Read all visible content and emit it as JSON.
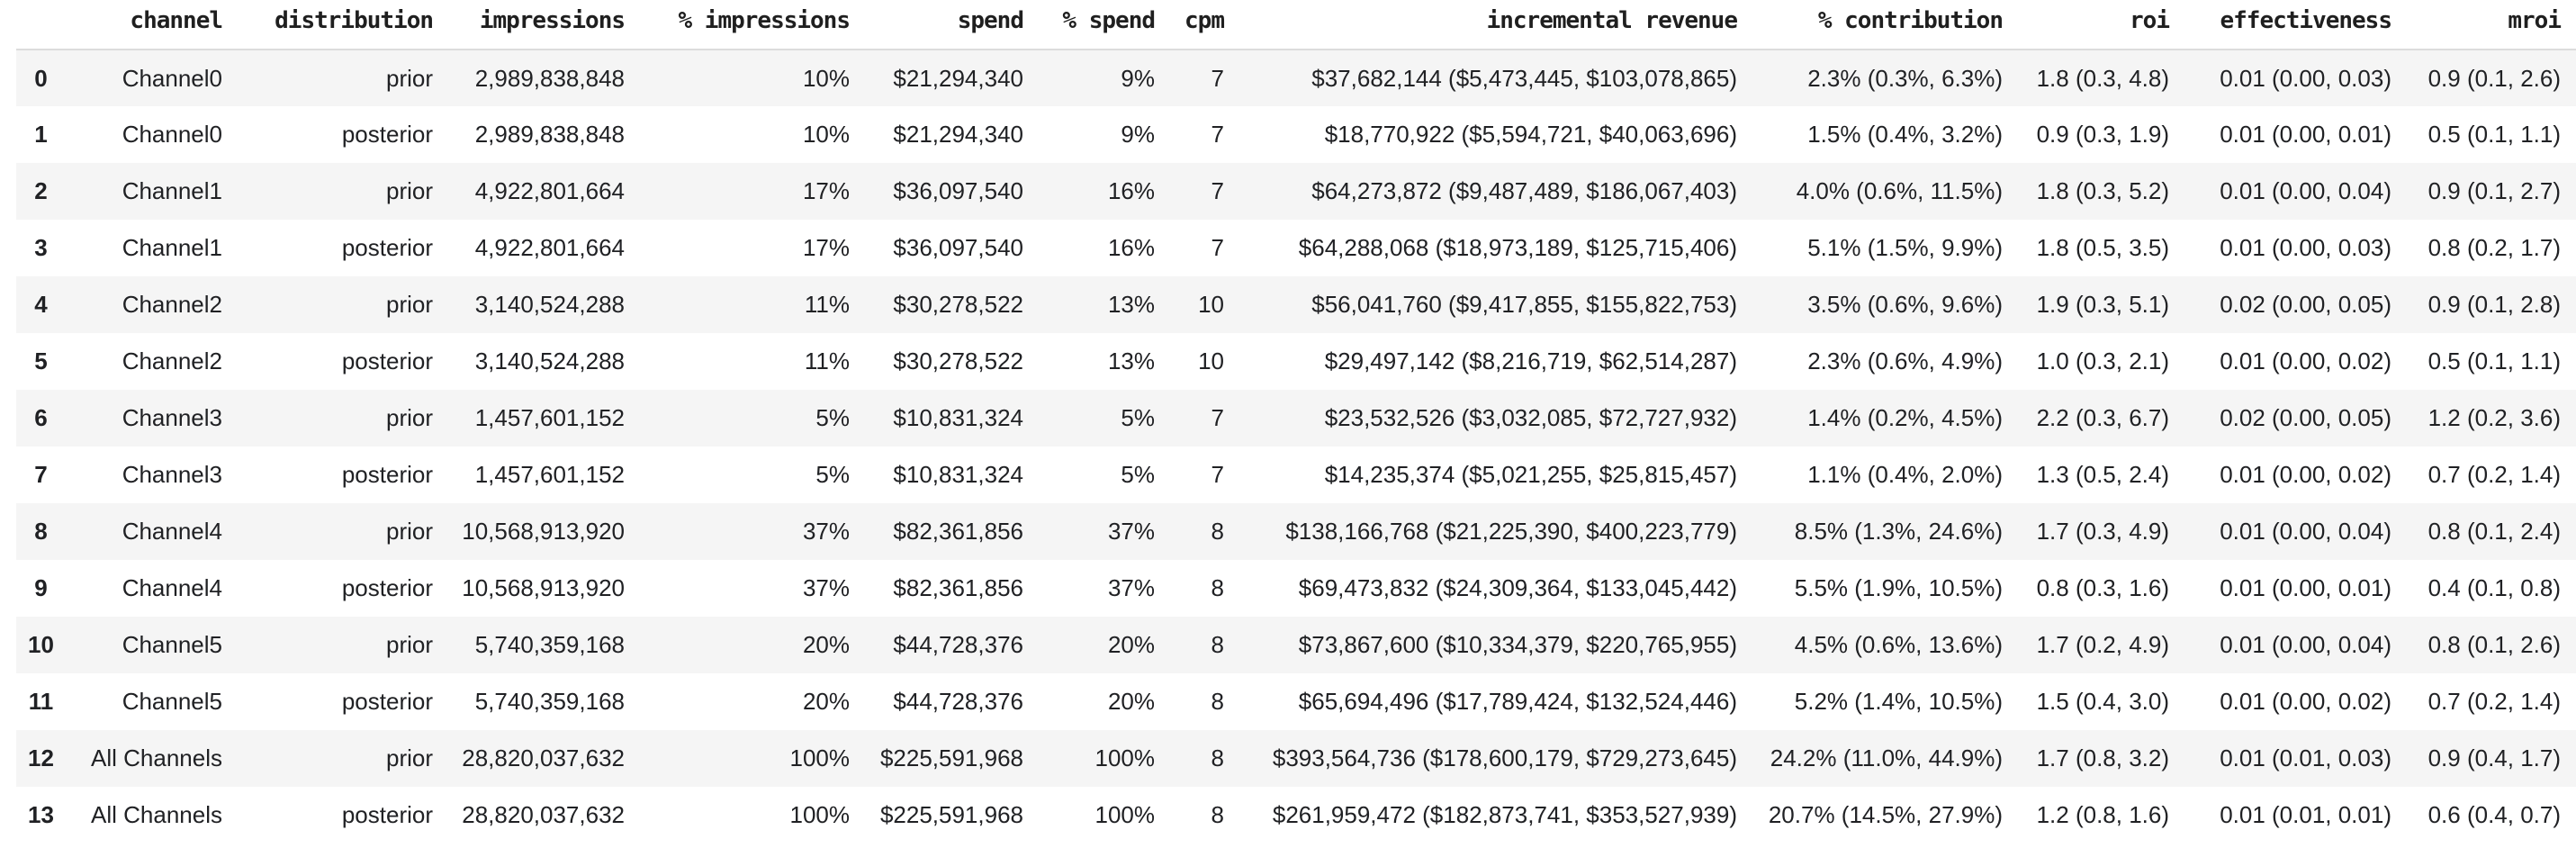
{
  "table": {
    "columns": [
      {
        "key": "index",
        "label": ""
      },
      {
        "key": "channel",
        "label": "channel"
      },
      {
        "key": "distribution",
        "label": "distribution"
      },
      {
        "key": "impressions",
        "label": "impressions"
      },
      {
        "key": "pct_impressions",
        "label": "% impressions"
      },
      {
        "key": "spend",
        "label": "spend"
      },
      {
        "key": "pct_spend",
        "label": "% spend"
      },
      {
        "key": "cpm",
        "label": "cpm"
      },
      {
        "key": "incremental_revenue",
        "label": "incremental revenue"
      },
      {
        "key": "pct_contribution",
        "label": "% contribution"
      },
      {
        "key": "roi",
        "label": "roi"
      },
      {
        "key": "effectiveness",
        "label": "effectiveness"
      },
      {
        "key": "mroi",
        "label": "mroi"
      }
    ],
    "rows": [
      {
        "index": "0",
        "channel": "Channel0",
        "distribution": "prior",
        "impressions": "2,989,838,848",
        "pct_impressions": "10%",
        "spend": "$21,294,340",
        "pct_spend": "9%",
        "cpm": "7",
        "incremental_revenue": "$37,682,144 ($5,473,445, $103,078,865)",
        "pct_contribution": "2.3% (0.3%, 6.3%)",
        "roi": "1.8 (0.3, 4.8)",
        "effectiveness": "0.01 (0.00, 0.03)",
        "mroi": "0.9 (0.1, 2.6)"
      },
      {
        "index": "1",
        "channel": "Channel0",
        "distribution": "posterior",
        "impressions": "2,989,838,848",
        "pct_impressions": "10%",
        "spend": "$21,294,340",
        "pct_spend": "9%",
        "cpm": "7",
        "incremental_revenue": "$18,770,922 ($5,594,721, $40,063,696)",
        "pct_contribution": "1.5% (0.4%, 3.2%)",
        "roi": "0.9 (0.3, 1.9)",
        "effectiveness": "0.01 (0.00, 0.01)",
        "mroi": "0.5 (0.1, 1.1)"
      },
      {
        "index": "2",
        "channel": "Channel1",
        "distribution": "prior",
        "impressions": "4,922,801,664",
        "pct_impressions": "17%",
        "spend": "$36,097,540",
        "pct_spend": "16%",
        "cpm": "7",
        "incremental_revenue": "$64,273,872 ($9,487,489, $186,067,403)",
        "pct_contribution": "4.0% (0.6%, 11.5%)",
        "roi": "1.8 (0.3, 5.2)",
        "effectiveness": "0.01 (0.00, 0.04)",
        "mroi": "0.9 (0.1, 2.7)"
      },
      {
        "index": "3",
        "channel": "Channel1",
        "distribution": "posterior",
        "impressions": "4,922,801,664",
        "pct_impressions": "17%",
        "spend": "$36,097,540",
        "pct_spend": "16%",
        "cpm": "7",
        "incremental_revenue": "$64,288,068 ($18,973,189, $125,715,406)",
        "pct_contribution": "5.1% (1.5%, 9.9%)",
        "roi": "1.8 (0.5, 3.5)",
        "effectiveness": "0.01 (0.00, 0.03)",
        "mroi": "0.8 (0.2, 1.7)"
      },
      {
        "index": "4",
        "channel": "Channel2",
        "distribution": "prior",
        "impressions": "3,140,524,288",
        "pct_impressions": "11%",
        "spend": "$30,278,522",
        "pct_spend": "13%",
        "cpm": "10",
        "incremental_revenue": "$56,041,760 ($9,417,855, $155,822,753)",
        "pct_contribution": "3.5% (0.6%, 9.6%)",
        "roi": "1.9 (0.3, 5.1)",
        "effectiveness": "0.02 (0.00, 0.05)",
        "mroi": "0.9 (0.1, 2.8)"
      },
      {
        "index": "5",
        "channel": "Channel2",
        "distribution": "posterior",
        "impressions": "3,140,524,288",
        "pct_impressions": "11%",
        "spend": "$30,278,522",
        "pct_spend": "13%",
        "cpm": "10",
        "incremental_revenue": "$29,497,142 ($8,216,719, $62,514,287)",
        "pct_contribution": "2.3% (0.6%, 4.9%)",
        "roi": "1.0 (0.3, 2.1)",
        "effectiveness": "0.01 (0.00, 0.02)",
        "mroi": "0.5 (0.1, 1.1)"
      },
      {
        "index": "6",
        "channel": "Channel3",
        "distribution": "prior",
        "impressions": "1,457,601,152",
        "pct_impressions": "5%",
        "spend": "$10,831,324",
        "pct_spend": "5%",
        "cpm": "7",
        "incremental_revenue": "$23,532,526 ($3,032,085, $72,727,932)",
        "pct_contribution": "1.4% (0.2%, 4.5%)",
        "roi": "2.2 (0.3, 6.7)",
        "effectiveness": "0.02 (0.00, 0.05)",
        "mroi": "1.2 (0.2, 3.6)"
      },
      {
        "index": "7",
        "channel": "Channel3",
        "distribution": "posterior",
        "impressions": "1,457,601,152",
        "pct_impressions": "5%",
        "spend": "$10,831,324",
        "pct_spend": "5%",
        "cpm": "7",
        "incremental_revenue": "$14,235,374 ($5,021,255, $25,815,457)",
        "pct_contribution": "1.1% (0.4%, 2.0%)",
        "roi": "1.3 (0.5, 2.4)",
        "effectiveness": "0.01 (0.00, 0.02)",
        "mroi": "0.7 (0.2, 1.4)"
      },
      {
        "index": "8",
        "channel": "Channel4",
        "distribution": "prior",
        "impressions": "10,568,913,920",
        "pct_impressions": "37%",
        "spend": "$82,361,856",
        "pct_spend": "37%",
        "cpm": "8",
        "incremental_revenue": "$138,166,768 ($21,225,390, $400,223,779)",
        "pct_contribution": "8.5% (1.3%, 24.6%)",
        "roi": "1.7 (0.3, 4.9)",
        "effectiveness": "0.01 (0.00, 0.04)",
        "mroi": "0.8 (0.1, 2.4)"
      },
      {
        "index": "9",
        "channel": "Channel4",
        "distribution": "posterior",
        "impressions": "10,568,913,920",
        "pct_impressions": "37%",
        "spend": "$82,361,856",
        "pct_spend": "37%",
        "cpm": "8",
        "incremental_revenue": "$69,473,832 ($24,309,364, $133,045,442)",
        "pct_contribution": "5.5% (1.9%, 10.5%)",
        "roi": "0.8 (0.3, 1.6)",
        "effectiveness": "0.01 (0.00, 0.01)",
        "mroi": "0.4 (0.1, 0.8)"
      },
      {
        "index": "10",
        "channel": "Channel5",
        "distribution": "prior",
        "impressions": "5,740,359,168",
        "pct_impressions": "20%",
        "spend": "$44,728,376",
        "pct_spend": "20%",
        "cpm": "8",
        "incremental_revenue": "$73,867,600 ($10,334,379, $220,765,955)",
        "pct_contribution": "4.5% (0.6%, 13.6%)",
        "roi": "1.7 (0.2, 4.9)",
        "effectiveness": "0.01 (0.00, 0.04)",
        "mroi": "0.8 (0.1, 2.6)"
      },
      {
        "index": "11",
        "channel": "Channel5",
        "distribution": "posterior",
        "impressions": "5,740,359,168",
        "pct_impressions": "20%",
        "spend": "$44,728,376",
        "pct_spend": "20%",
        "cpm": "8",
        "incremental_revenue": "$65,694,496 ($17,789,424, $132,524,446)",
        "pct_contribution": "5.2% (1.4%, 10.5%)",
        "roi": "1.5 (0.4, 3.0)",
        "effectiveness": "0.01 (0.00, 0.02)",
        "mroi": "0.7 (0.2, 1.4)"
      },
      {
        "index": "12",
        "channel": "All Channels",
        "distribution": "prior",
        "impressions": "28,820,037,632",
        "pct_impressions": "100%",
        "spend": "$225,591,968",
        "pct_spend": "100%",
        "cpm": "8",
        "incremental_revenue": "$393,564,736 ($178,600,179, $729,273,645)",
        "pct_contribution": "24.2% (11.0%, 44.9%)",
        "roi": "1.7 (0.8, 3.2)",
        "effectiveness": "0.01 (0.01, 0.03)",
        "mroi": "0.9 (0.4, 1.7)"
      },
      {
        "index": "13",
        "channel": "All Channels",
        "distribution": "posterior",
        "impressions": "28,820,037,632",
        "pct_impressions": "100%",
        "spend": "$225,591,968",
        "pct_spend": "100%",
        "cpm": "8",
        "incremental_revenue": "$261,959,472 ($182,873,741, $353,527,939)",
        "pct_contribution": "20.7% (14.5%, 27.9%)",
        "roi": "1.2 (0.8, 1.6)",
        "effectiveness": "0.01 (0.01, 0.01)",
        "mroi": "0.6 (0.4, 0.7)"
      }
    ]
  },
  "colors": {
    "background": "#ffffff",
    "row_stripe": "#f5f5f5",
    "header_border": "#dcdcdc",
    "text": "#202124"
  }
}
